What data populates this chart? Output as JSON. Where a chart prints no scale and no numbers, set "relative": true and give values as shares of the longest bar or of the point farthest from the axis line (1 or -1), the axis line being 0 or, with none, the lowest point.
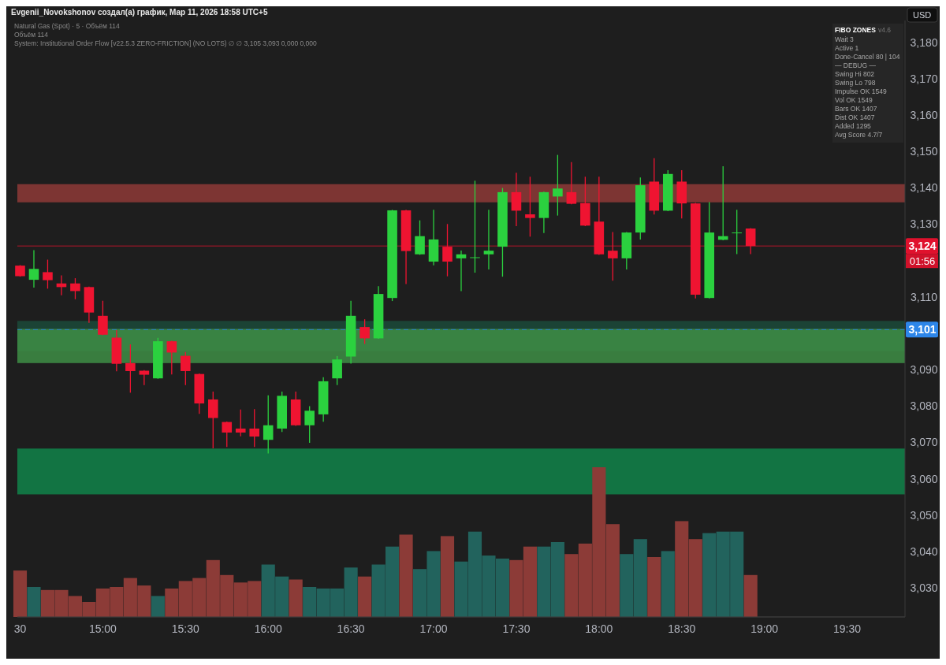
{
  "chart_data": [
    {
      "type": "candlestick",
      "title": "Evgenii_Novokshonov создал(а) график, Мар 11, 2026 18:58 UTC+5",
      "subtitle": "Natural Gas (Spot) · 5 · Объём 114",
      "ylabel": "USD",
      "annotations": [
        "Объём 114",
        "System: Institutional Order Flow [v22.5.3 ZERO-FRICTION] (NO LOTS) ∅ ∅ 3,105 3,093 0,000 0,000",
        {
          "text": "01:56",
          "y": 3124
        }
      ],
      "x": [
        "2026-03-11T14:30",
        "2026-03-11T14:35",
        "2026-03-11T14:40",
        "2026-03-11T14:45",
        "2026-03-11T14:50",
        "2026-03-11T14:55",
        "2026-03-11T15:00",
        "2026-03-11T15:05",
        "2026-03-11T15:10",
        "2026-03-11T15:15",
        "2026-03-11T15:20",
        "2026-03-11T15:25",
        "2026-03-11T15:30",
        "2026-03-11T15:35",
        "2026-03-11T15:40",
        "2026-03-11T15:45",
        "2026-03-11T15:50",
        "2026-03-11T15:55",
        "2026-03-11T16:00",
        "2026-03-11T16:05",
        "2026-03-11T16:10",
        "2026-03-11T16:15",
        "2026-03-11T16:20",
        "2026-03-11T16:25",
        "2026-03-11T16:30",
        "2026-03-11T16:35",
        "2026-03-11T16:40",
        "2026-03-11T16:45",
        "2026-03-11T16:50",
        "2026-03-11T16:55",
        "2026-03-11T17:00",
        "2026-03-11T17:05",
        "2026-03-11T17:10",
        "2026-03-11T17:15",
        "2026-03-11T17:20",
        "2026-03-11T17:25",
        "2026-03-11T17:30",
        "2026-03-11T17:35",
        "2026-03-11T17:40",
        "2026-03-11T17:45",
        "2026-03-11T17:50",
        "2026-03-11T17:55",
        "2026-03-11T18:00",
        "2026-03-11T18:05",
        "2026-03-11T18:10",
        "2026-03-11T18:15",
        "2026-03-11T18:20",
        "2026-03-11T18:25",
        "2026-03-11T18:30",
        "2026-03-11T18:35",
        "2026-03-11T18:40",
        "2026-03-11T18:45",
        "2026-03-11T18:50",
        "2026-03-11T18:55"
      ],
      "ohlc": [
        [
          3118.6,
          3118.6,
          3115.7,
          3115.7
        ],
        [
          3114.7,
          3122.7,
          3112.7,
          3117.7
        ],
        [
          3116.8,
          3120.1,
          3112.4,
          3114.6
        ],
        [
          3113.7,
          3115.8,
          3110.6,
          3112.7
        ],
        [
          3113.7,
          3115.0,
          3109.5,
          3111.6
        ],
        [
          3112.7,
          3112.7,
          3103.0,
          3105.7
        ],
        [
          3104.8,
          3108.8,
          3099.6,
          3099.6
        ],
        [
          3098.8,
          3100.7,
          3089.7,
          3091.6
        ],
        [
          3091.8,
          3096.8,
          3083.8,
          3089.6
        ],
        [
          3089.7,
          3089.7,
          3085.9,
          3088.6
        ],
        [
          3087.6,
          3098.6,
          3087.6,
          3097.8
        ],
        [
          3097.8,
          3097.8,
          3088.8,
          3094.7
        ],
        [
          3093.8,
          3094.7,
          3085.9,
          3089.6
        ],
        [
          3088.8,
          3088.8,
          3078.0,
          3080.7
        ],
        [
          3081.8,
          3083.8,
          3068.5,
          3076.7
        ],
        [
          3075.6,
          3075.6,
          3068.9,
          3072.7
        ],
        [
          3073.8,
          3078.9,
          3071.8,
          3072.7
        ],
        [
          3073.8,
          3079.0,
          3068.9,
          3071.6
        ],
        [
          3070.7,
          3082.8,
          3067.1,
          3074.7
        ],
        [
          3073.8,
          3083.8,
          3073.0,
          3082.8
        ],
        [
          3081.8,
          3083.8,
          3074.7,
          3074.7
        ],
        [
          3074.7,
          3079.8,
          3070.0,
          3078.7
        ],
        [
          3077.7,
          3087.8,
          3075.8,
          3086.8
        ],
        [
          3087.6,
          3093.6,
          3085.9,
          3092.8
        ],
        [
          3093.6,
          3108.8,
          3091.8,
          3104.8
        ],
        [
          3101.7,
          3103.7,
          3097.2,
          3098.6
        ],
        [
          3098.6,
          3112.8,
          3098.6,
          3110.8
        ],
        [
          3109.7,
          3133.8,
          3109.0,
          3133.8
        ],
        [
          3133.8,
          3133.8,
          3113.7,
          3122.6
        ],
        [
          3121.7,
          3130.9,
          3121.7,
          3126.7
        ],
        [
          3119.7,
          3133.8,
          3118.8,
          3125.8
        ],
        [
          3123.8,
          3129.9,
          3115.8,
          3119.7
        ],
        [
          3120.6,
          3122.6,
          3111.7,
          3121.7
        ],
        [
          3120.8,
          3141.8,
          3116.8,
          3120.9
        ],
        [
          3121.7,
          3133.8,
          3117.7,
          3122.7
        ],
        [
          3123.8,
          3139.8,
          3115.7,
          3138.8
        ],
        [
          3138.8,
          3144.0,
          3129.6,
          3133.7
        ],
        [
          3132.7,
          3142.9,
          3126.7,
          3131.7
        ],
        [
          3131.7,
          3138.8,
          3127.7,
          3138.8
        ],
        [
          3137.6,
          3148.9,
          3132.5,
          3139.8
        ],
        [
          3138.8,
          3146.9,
          3135.6,
          3135.6
        ],
        [
          3135.8,
          3142.9,
          3129.6,
          3129.6
        ],
        [
          3130.7,
          3142.9,
          3121.7,
          3121.7
        ],
        [
          3122.7,
          3127.7,
          3114.6,
          3120.6
        ],
        [
          3120.6,
          3127.7,
          3117.7,
          3127.7
        ],
        [
          3127.7,
          3142.7,
          3125.9,
          3140.7
        ],
        [
          3141.7,
          3148.0,
          3132.8,
          3133.7
        ],
        [
          3133.7,
          3144.7,
          3133.7,
          3143.8
        ],
        [
          3141.7,
          3144.7,
          3131.7,
          3135.7
        ],
        [
          3135.7,
          3135.7,
          3109.7,
          3110.6
        ],
        [
          3109.7,
          3135.9,
          3109.7,
          3127.7
        ],
        [
          3125.7,
          3145.8,
          3125.7,
          3126.7
        ],
        [
          3127.7,
          3133.8,
          3121.9,
          3127.7
        ],
        [
          3128.8,
          3128.8,
          3121.9,
          3124.0
        ]
      ],
      "colors": [
        "#ef1431",
        "#2bd13f",
        "#ef1431",
        "#ef1431",
        "#ef1431",
        "#ef1431",
        "#ef1431",
        "#ef1431",
        "#ef1431",
        "#ef1431",
        "#2bd13f",
        "#ef1431",
        "#ef1431",
        "#ef1431",
        "#ef1431",
        "#ef1431",
        "#ef1431",
        "#ef1431",
        "#2bd13f",
        "#2bd13f",
        "#ef1431",
        "#2bd13f",
        "#2bd13f",
        "#2bd13f",
        "#2bd13f",
        "#ef1431",
        "#2bd13f",
        "#2bd13f",
        "#ef1431",
        "#2bd13f",
        "#2bd13f",
        "#ef1431",
        "#2bd13f",
        "#2bd13f",
        "#2bd13f",
        "#2bd13f",
        "#ef1431",
        "#ef1431",
        "#2bd13f",
        "#2bd13f",
        "#ef1431",
        "#ef1431",
        "#ef1431",
        "#ef1431",
        "#2bd13f",
        "#2bd13f",
        "#ef1431",
        "#2bd13f",
        "#ef1431",
        "#ef1431",
        "#2bd13f",
        "#2bd13f",
        "#2bd13f",
        "#ef1431"
      ],
      "xlim": [
        "2026-03-11T14:29",
        "2026-03-11T19:51"
      ],
      "xticks": [
        {
          "value": "2026-03-11T14:30",
          "label": "30"
        },
        {
          "value": "2026-03-11T15:00",
          "label": "15:00"
        },
        {
          "value": "2026-03-11T15:30",
          "label": "15:30"
        },
        {
          "value": "2026-03-11T16:00",
          "label": "16:00"
        },
        {
          "value": "2026-03-11T16:30",
          "label": "16:30"
        },
        {
          "value": "2026-03-11T17:00",
          "label": "17:00"
        },
        {
          "value": "2026-03-11T17:30",
          "label": "17:30"
        },
        {
          "value": "2026-03-11T18:00",
          "label": "18:00"
        },
        {
          "value": "2026-03-11T18:30",
          "label": "18:30"
        },
        {
          "value": "2026-03-11T19:00",
          "label": "19:00"
        },
        {
          "value": "2026-03-11T19:30",
          "label": "19:30"
        }
      ],
      "ylim": [
        3022,
        3186
      ],
      "yticks": [
        {
          "value": 3030,
          "label": "3,030"
        },
        {
          "value": 3040,
          "label": "3,040"
        },
        {
          "value": 3050,
          "label": "3,050"
        },
        {
          "value": 3060,
          "label": "3,060"
        },
        {
          "value": 3070,
          "label": "3,070"
        },
        {
          "value": 3080,
          "label": "3,080"
        },
        {
          "value": 3090,
          "label": "3,090"
        },
        {
          "value": 3110,
          "label": "3,110"
        },
        {
          "value": 3130,
          "label": "3,130"
        },
        {
          "value": 3140,
          "label": "3,140"
        },
        {
          "value": 3150,
          "label": "3,150"
        },
        {
          "value": 3160,
          "label": "3,160"
        },
        {
          "value": 3170,
          "label": "3,170"
        },
        {
          "value": 3180,
          "label": "3,180"
        }
      ],
      "bands": [
        {
          "axis": "y",
          "from": 3095.1,
          "to": 3103.4,
          "color": "#1b4a3a"
        },
        {
          "axis": "y",
          "from": 3091.8,
          "to": 3101.2,
          "color": "#3e8e45"
        },
        {
          "axis": "y",
          "from": 3136.0,
          "to": 3141.0,
          "color": "#8e3a37"
        },
        {
          "axis": "y",
          "from": 3055.7,
          "to": 3068.3,
          "color": "#11844a"
        }
      ],
      "ref_lines": [
        {
          "axis": "y",
          "value": 3101,
          "label": "3,101",
          "color": "#2d86e9",
          "line_style": "dashed"
        },
        {
          "axis": "y",
          "value": 3124,
          "label": "3,124",
          "color": "#e0112d",
          "line_style": "solid"
        }
      ]
    },
    {
      "type": "bar",
      "relative": true,
      "x": [
        "2026-03-11T14:30",
        "2026-03-11T14:35",
        "2026-03-11T14:40",
        "2026-03-11T14:45",
        "2026-03-11T14:50",
        "2026-03-11T14:55",
        "2026-03-11T15:00",
        "2026-03-11T15:05",
        "2026-03-11T15:10",
        "2026-03-11T15:15",
        "2026-03-11T15:20",
        "2026-03-11T15:25",
        "2026-03-11T15:30",
        "2026-03-11T15:35",
        "2026-03-11T15:40",
        "2026-03-11T15:45",
        "2026-03-11T15:50",
        "2026-03-11T15:55",
        "2026-03-11T16:00",
        "2026-03-11T16:05",
        "2026-03-11T16:10",
        "2026-03-11T16:15",
        "2026-03-11T16:20",
        "2026-03-11T16:25",
        "2026-03-11T16:30",
        "2026-03-11T16:35",
        "2026-03-11T16:40",
        "2026-03-11T16:45",
        "2026-03-11T16:50",
        "2026-03-11T16:55",
        "2026-03-11T17:00",
        "2026-03-11T17:05",
        "2026-03-11T17:10",
        "2026-03-11T17:15",
        "2026-03-11T17:20",
        "2026-03-11T17:25",
        "2026-03-11T17:30",
        "2026-03-11T17:35",
        "2026-03-11T17:40",
        "2026-03-11T17:45",
        "2026-03-11T17:50",
        "2026-03-11T17:55",
        "2026-03-11T18:00",
        "2026-03-11T18:05",
        "2026-03-11T18:10",
        "2026-03-11T18:15",
        "2026-03-11T18:20",
        "2026-03-11T18:25",
        "2026-03-11T18:30",
        "2026-03-11T18:35",
        "2026-03-11T18:40",
        "2026-03-11T18:45",
        "2026-03-11T18:50",
        "2026-03-11T18:55"
      ],
      "xlim": [
        "2026-03-11T14:29",
        "2026-03-11T19:51"
      ],
      "values": [
        0.31,
        0.2,
        0.18,
        0.18,
        0.14,
        0.1,
        0.19,
        0.2,
        0.26,
        0.21,
        0.14,
        0.19,
        0.24,
        0.26,
        0.38,
        0.28,
        0.23,
        0.24,
        0.35,
        0.27,
        0.25,
        0.2,
        0.19,
        0.19,
        0.33,
        0.27,
        0.35,
        0.47,
        0.55,
        0.32,
        0.44,
        0.54,
        0.37,
        0.57,
        0.41,
        0.39,
        0.38,
        0.47,
        0.47,
        0.5,
        0.42,
        0.49,
        1,
        0.62,
        0.42,
        0.52,
        0.4,
        0.44,
        0.64,
        0.52,
        0.56,
        0.57,
        0.57,
        0.28
      ],
      "colors": [
        "#8c3b37",
        "#22635d",
        "#8c3b37",
        "#8c3b37",
        "#8c3b37",
        "#8c3b37",
        "#8c3b37",
        "#8c3b37",
        "#8c3b37",
        "#8c3b37",
        "#22635d",
        "#8c3b37",
        "#8c3b37",
        "#8c3b37",
        "#8c3b37",
        "#8c3b37",
        "#8c3b37",
        "#8c3b37",
        "#22635d",
        "#22635d",
        "#8c3b37",
        "#22635d",
        "#22635d",
        "#22635d",
        "#22635d",
        "#8c3b37",
        "#22635d",
        "#22635d",
        "#8c3b37",
        "#22635d",
        "#22635d",
        "#8c3b37",
        "#22635d",
        "#22635d",
        "#22635d",
        "#22635d",
        "#8c3b37",
        "#8c3b37",
        "#22635d",
        "#22635d",
        "#8c3b37",
        "#8c3b37",
        "#8c3b37",
        "#8c3b37",
        "#22635d",
        "#22635d",
        "#8c3b37",
        "#22635d",
        "#8c3b37",
        "#8c3b37",
        "#22635d",
        "#22635d",
        "#22635d",
        "#8c3b37"
      ]
    },
    {
      "type": "other",
      "title": "FIBO ZONES",
      "subtitle": "v4.6",
      "annotations": [
        "Wait 3",
        "Active 1",
        "Done-Cancel 80 | 104",
        "— DEBUG —",
        "Swing Hi 802",
        "Swing Lo 798",
        "Impulse OK 1549",
        "Vol OK 1549",
        "Bars OK 1407",
        "Dist OK 1407",
        "Added 1295",
        "Avg Score 4.7/7"
      ]
    }
  ]
}
